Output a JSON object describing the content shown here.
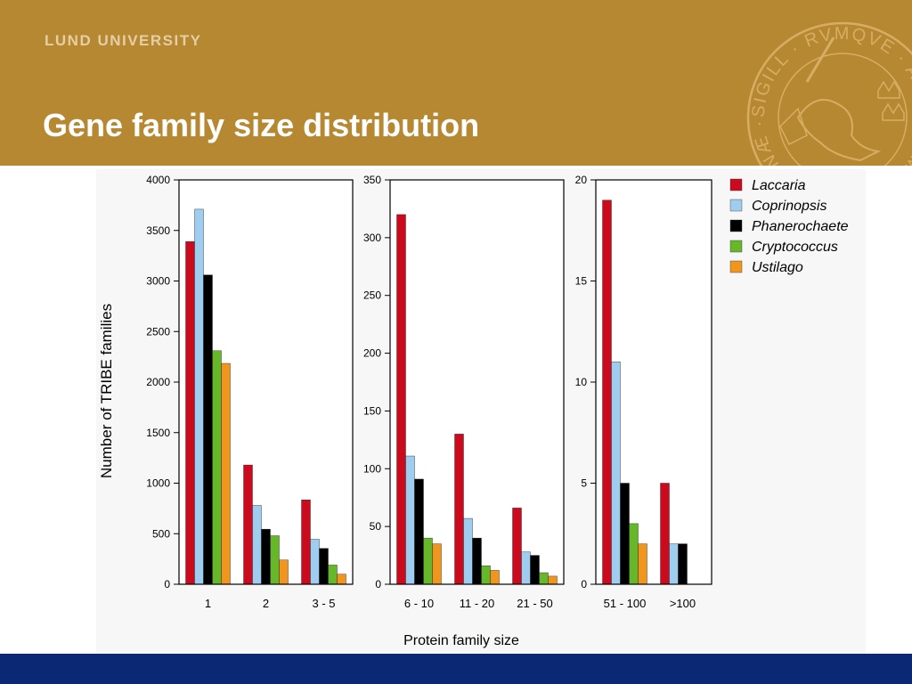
{
  "header": {
    "brand": "LUND UNIVERSITY",
    "title": "Gene family size distribution",
    "seal_text": "SIGILL · RVMQVE · AD VTRVMQVE · CAROLINÆ · RVM ·",
    "background_color": "#b78832",
    "seal_icon": "lund-university-seal-icon"
  },
  "footer": {
    "color": "#0a2874"
  },
  "chart_data": [
    {
      "type": "bar",
      "categories": [
        "1",
        "2",
        "3 - 5"
      ],
      "ylim": [
        0,
        4000
      ],
      "yticks": [
        0,
        500,
        1000,
        1500,
        2000,
        2500,
        3000,
        3500,
        4000
      ],
      "ylabel": "Number of TRIBE families",
      "series": [
        {
          "name": "Laccaria",
          "values": [
            3390,
            1180,
            835
          ]
        },
        {
          "name": "Coprinopsis",
          "values": [
            3710,
            780,
            445
          ]
        },
        {
          "name": "Phanerochaete",
          "values": [
            3060,
            545,
            355
          ]
        },
        {
          "name": "Cryptococcus",
          "values": [
            2310,
            480,
            190
          ]
        },
        {
          "name": "Ustilago",
          "values": [
            2185,
            240,
            100
          ]
        }
      ]
    },
    {
      "type": "bar",
      "categories": [
        "6 - 10",
        "11 - 20",
        "21 - 50"
      ],
      "ylim": [
        0,
        350
      ],
      "yticks": [
        0,
        50,
        100,
        150,
        200,
        250,
        300,
        350
      ],
      "series": [
        {
          "name": "Laccaria",
          "values": [
            320,
            130,
            66
          ]
        },
        {
          "name": "Coprinopsis",
          "values": [
            111,
            57,
            28
          ]
        },
        {
          "name": "Phanerochaete",
          "values": [
            91,
            40,
            25
          ]
        },
        {
          "name": "Cryptococcus",
          "values": [
            40,
            16,
            10
          ]
        },
        {
          "name": "Ustilago",
          "values": [
            35,
            12,
            7
          ]
        }
      ]
    },
    {
      "type": "bar",
      "categories": [
        "51 - 100",
        ">100"
      ],
      "ylim": [
        0,
        20
      ],
      "yticks": [
        0,
        5,
        10,
        15,
        20
      ],
      "series": [
        {
          "name": "Laccaria",
          "values": [
            19,
            5
          ]
        },
        {
          "name": "Coprinopsis",
          "values": [
            11,
            2
          ]
        },
        {
          "name": "Phanerochaete",
          "values": [
            5,
            2
          ]
        },
        {
          "name": "Cryptococcus",
          "values": [
            3,
            0
          ]
        },
        {
          "name": "Ustilago",
          "values": [
            2,
            0
          ]
        }
      ]
    }
  ],
  "xlabel": "Protein family size",
  "legend": {
    "placement": "top-right",
    "items": [
      {
        "name": "Laccaria",
        "color": "#cc0a1e"
      },
      {
        "name": "Coprinopsis",
        "color": "#9fcdf0"
      },
      {
        "name": "Phanerochaete",
        "color": "#000000"
      },
      {
        "name": "Cryptococcus",
        "color": "#66b82a"
      },
      {
        "name": "Ustilago",
        "color": "#f0961e"
      }
    ]
  }
}
